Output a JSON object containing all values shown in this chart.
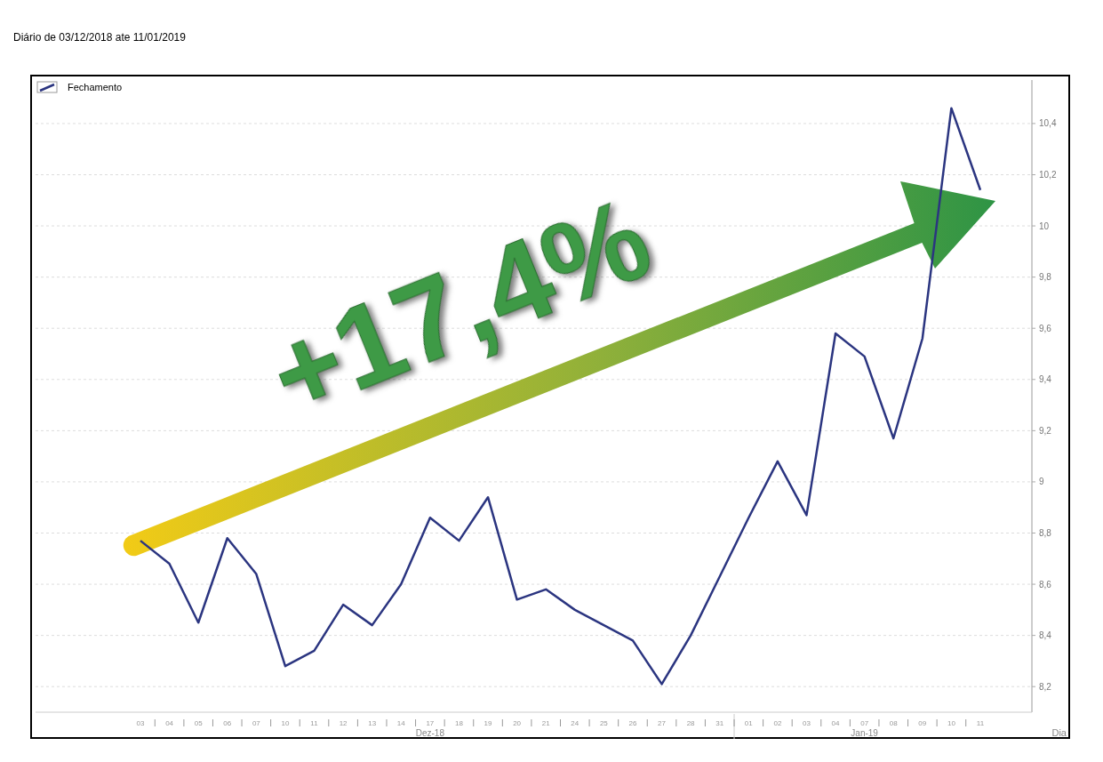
{
  "chart_data": {
    "type": "line",
    "subtitle": "Diário de 03/12/2018 ate 11/01/2019",
    "xlabel": "Dia",
    "categories": [
      "03",
      "04",
      "05",
      "06",
      "07",
      "10",
      "11",
      "12",
      "13",
      "14",
      "17",
      "18",
      "19",
      "20",
      "21",
      "24",
      "25",
      "26",
      "27",
      "28",
      "31",
      "01",
      "02",
      "03",
      "04",
      "07",
      "08",
      "09",
      "10",
      "11"
    ],
    "series": [
      {
        "name": "Fechamento",
        "color": "#2b3580",
        "values": [
          8.77,
          8.68,
          8.45,
          8.78,
          8.64,
          8.28,
          8.34,
          8.52,
          8.44,
          8.6,
          8.86,
          8.77,
          8.94,
          8.54,
          8.58,
          8.5,
          8.44,
          8.38,
          8.21,
          8.4,
          8.63,
          8.86,
          9.08,
          8.87,
          9.58,
          9.49,
          9.17,
          9.56,
          10.46,
          10.14
        ]
      }
    ],
    "ylim": [
      8.1,
      10.57
    ],
    "yticks": [
      {
        "value": 8.2,
        "label": "8,2"
      },
      {
        "value": 8.4,
        "label": "8,4"
      },
      {
        "value": 8.6,
        "label": "8,6"
      },
      {
        "value": 8.8,
        "label": "8,8"
      },
      {
        "value": 9,
        "label": "9"
      },
      {
        "value": 9.2,
        "label": "9,2"
      },
      {
        "value": 9.4,
        "label": "9,4"
      },
      {
        "value": 9.6,
        "label": "9,6"
      },
      {
        "value": 9.8,
        "label": "9,8"
      },
      {
        "value": 10,
        "label": "10"
      },
      {
        "value": 10.2,
        "label": "10,2"
      },
      {
        "value": 10.4,
        "label": "10,4"
      }
    ],
    "annotations": [
      "Dez-18",
      "Jan-19",
      "+17,4%"
    ],
    "grid": "y",
    "legend": "top left",
    "marker": "none",
    "line_style": "solid"
  }
}
